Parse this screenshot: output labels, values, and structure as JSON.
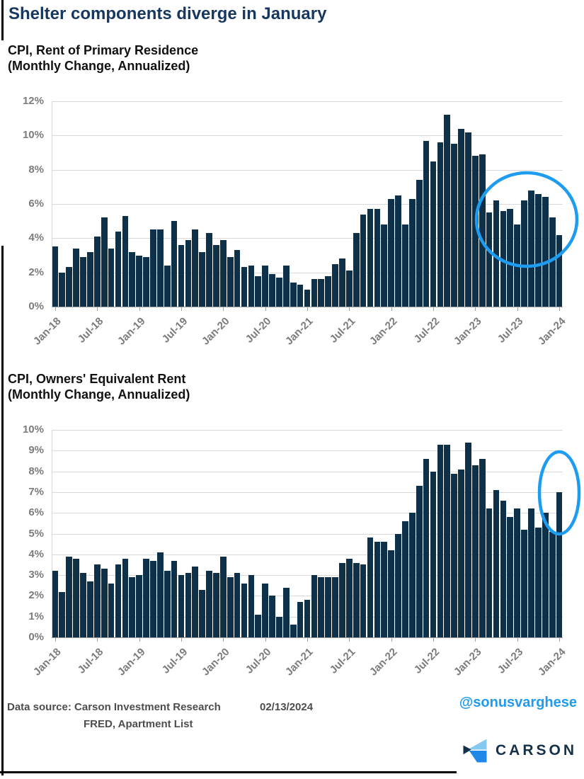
{
  "title": "Shelter components diverge in January",
  "colors": {
    "bar": "#0f3049",
    "highlight_blue": "#1e9cf0",
    "title_navy": "#17375e",
    "axis_gray": "#7c7c7c",
    "handle_blue": "#1e9bf0"
  },
  "chart_data": [
    {
      "type": "bar",
      "title": "CPI, Rent of Primary Residence",
      "subtitle": "(Monthly Change, Annualized)",
      "frequency": "monthly",
      "start": "Jan-18",
      "end": "Jan-24",
      "ylim": [
        0,
        12
      ],
      "ytick_step": 2,
      "ytick_labels": [
        "12%",
        "10%",
        "8%",
        "6%",
        "4%",
        "2%",
        "0%"
      ],
      "grid": true,
      "legend": "none",
      "xticks": [
        {
          "label": "Jan-18",
          "index": 0
        },
        {
          "label": "Jul-18",
          "index": 6
        },
        {
          "label": "Jan-19",
          "index": 12
        },
        {
          "label": "Jul-19",
          "index": 18
        },
        {
          "label": "Jan-20",
          "index": 24
        },
        {
          "label": "Jul-20",
          "index": 30
        },
        {
          "label": "Jan-21",
          "index": 36
        },
        {
          "label": "Jul-21",
          "index": 42
        },
        {
          "label": "Jan-22",
          "index": 48
        },
        {
          "label": "Jul-22",
          "index": 54
        },
        {
          "label": "Jan-23",
          "index": 60
        },
        {
          "label": "Jul-23",
          "index": 66
        },
        {
          "label": "Jan-24",
          "index": 72
        }
      ],
      "values": [
        3.5,
        2.0,
        2.3,
        3.4,
        2.9,
        3.2,
        4.1,
        5.2,
        3.4,
        4.4,
        5.3,
        3.2,
        3.0,
        2.9,
        4.5,
        4.5,
        2.4,
        5.0,
        3.6,
        3.9,
        4.5,
        3.2,
        4.3,
        3.6,
        3.9,
        2.9,
        3.3,
        2.3,
        2.4,
        1.8,
        2.4,
        1.9,
        1.7,
        2.4,
        1.4,
        1.3,
        1.0,
        1.6,
        1.6,
        1.8,
        2.5,
        2.8,
        2.1,
        4.3,
        5.4,
        5.7,
        5.7,
        4.8,
        6.3,
        6.5,
        4.8,
        6.3,
        7.4,
        9.7,
        8.5,
        9.6,
        11.2,
        9.5,
        10.4,
        10.2,
        8.8,
        8.9,
        5.5,
        6.2,
        5.6,
        5.7,
        4.8,
        6.2,
        6.8,
        6.6,
        6.4,
        5.2,
        4.2
      ],
      "annotation": "blue ellipse circling roughly Feb-23 through Jan-24"
    },
    {
      "type": "bar",
      "title": "CPI, Owners' Equivalent Rent",
      "subtitle": "(Monthly Change, Annualized)",
      "frequency": "monthly",
      "start": "Jan-18",
      "end": "Jan-24",
      "ylim": [
        0,
        10
      ],
      "ytick_step": 1,
      "ytick_labels": [
        "10%",
        "9%",
        "8%",
        "7%",
        "6%",
        "5%",
        "4%",
        "3%",
        "2%",
        "1%",
        "0%"
      ],
      "grid": true,
      "legend": "none",
      "xticks": [
        {
          "label": "Jan-18",
          "index": 0
        },
        {
          "label": "Jul-18",
          "index": 6
        },
        {
          "label": "Jan-19",
          "index": 12
        },
        {
          "label": "Jul-19",
          "index": 18
        },
        {
          "label": "Jan-20",
          "index": 24
        },
        {
          "label": "Jul-20",
          "index": 30
        },
        {
          "label": "Jan-21",
          "index": 36
        },
        {
          "label": "Jul-21",
          "index": 42
        },
        {
          "label": "Jan-22",
          "index": 48
        },
        {
          "label": "Jul-22",
          "index": 54
        },
        {
          "label": "Jan-23",
          "index": 60
        },
        {
          "label": "Jul-23",
          "index": 66
        },
        {
          "label": "Jan-24",
          "index": 72
        }
      ],
      "values": [
        3.2,
        2.2,
        3.9,
        3.8,
        3.1,
        2.7,
        3.5,
        3.3,
        2.6,
        3.5,
        3.8,
        2.9,
        3.0,
        3.8,
        3.7,
        4.1,
        3.2,
        3.7,
        3.0,
        3.1,
        3.4,
        2.3,
        3.2,
        3.1,
        3.9,
        2.9,
        3.1,
        2.6,
        3.0,
        1.1,
        2.6,
        2.0,
        1.0,
        2.4,
        0.6,
        1.7,
        1.8,
        3.0,
        2.9,
        2.9,
        2.9,
        3.6,
        3.8,
        3.6,
        3.5,
        4.8,
        4.6,
        4.6,
        4.2,
        5.0,
        5.6,
        6.0,
        7.3,
        8.6,
        8.0,
        9.3,
        9.3,
        7.9,
        8.1,
        9.4,
        8.3,
        8.6,
        6.2,
        7.1,
        6.6,
        5.8,
        6.2,
        5.2,
        6.2,
        5.3,
        6.0,
        5.1,
        7.0
      ],
      "annotation": "blue ellipse circling Dec-23 and Jan-24"
    }
  ],
  "footer": {
    "source_prefix": "Data source:",
    "source_line1": "Carson Investment Research",
    "source_line2": "FRED, Apartment List",
    "date": "02/13/2024",
    "handle": "@sonusvarghese",
    "brand": "CARSON"
  }
}
